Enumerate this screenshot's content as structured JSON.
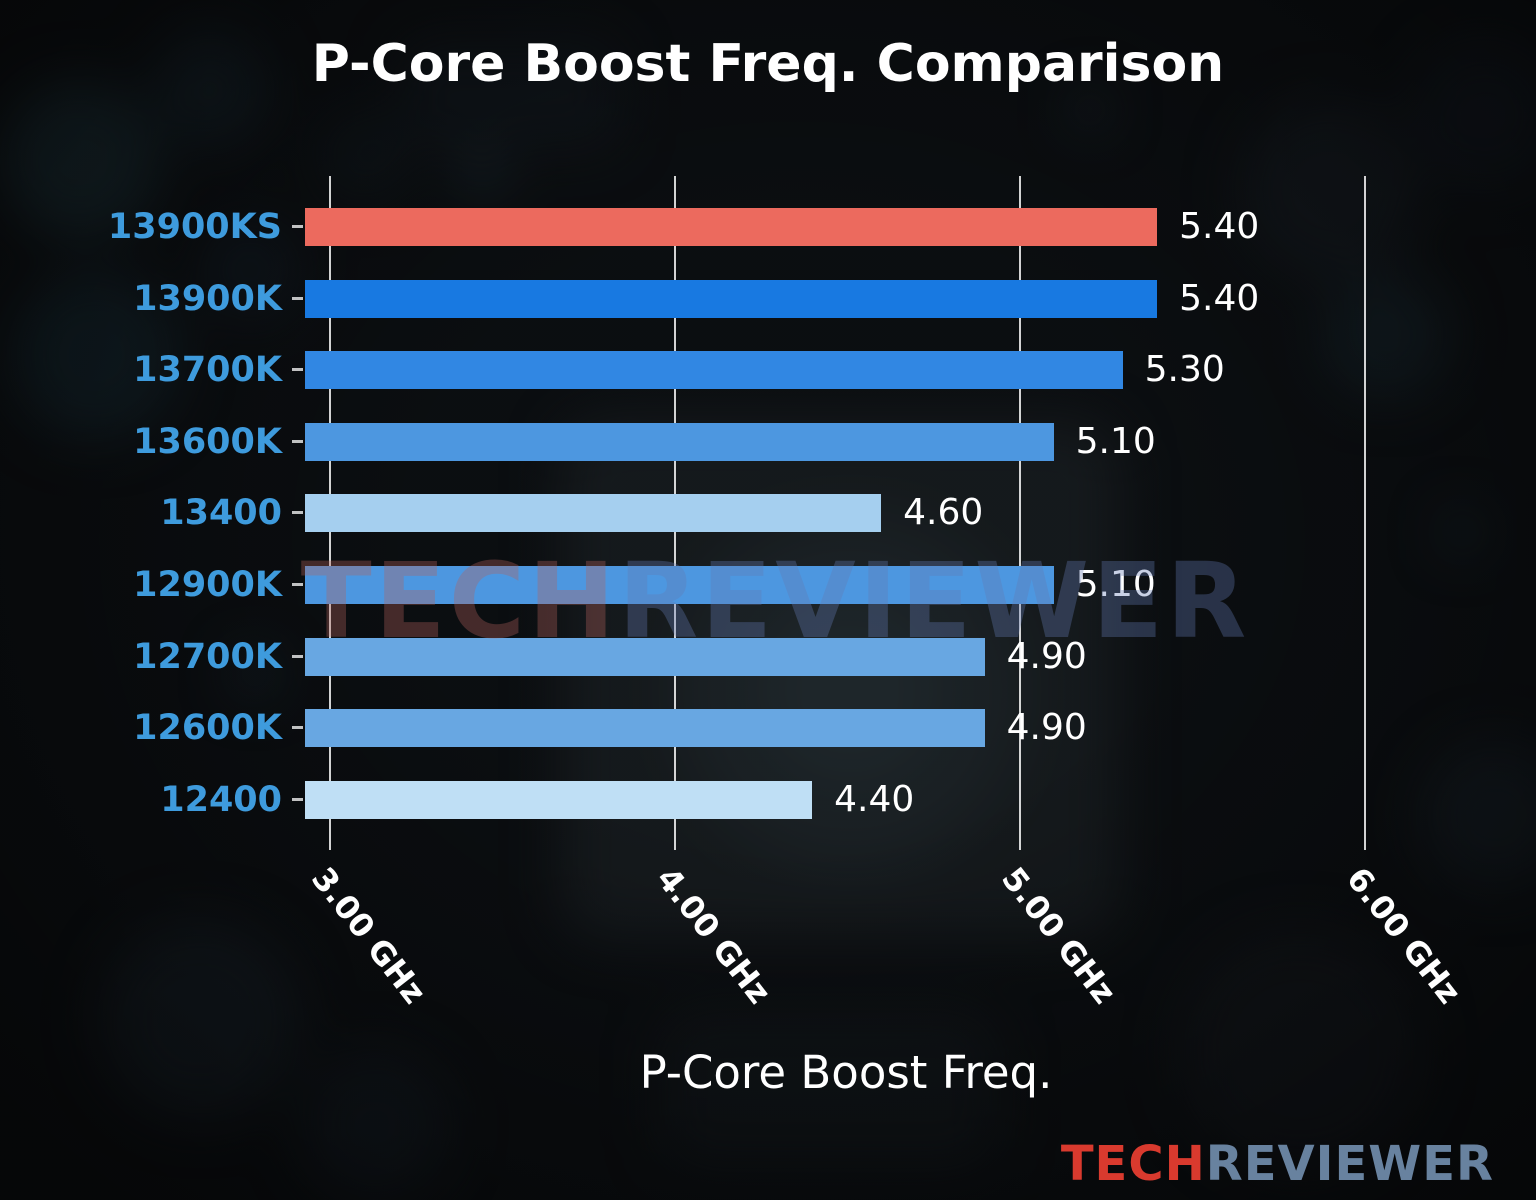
{
  "title": "P-Core Boost Freq. Comparison",
  "xlabel": "P-Core Boost Freq.",
  "watermark": {
    "tech": "TECH",
    "reviewer": "REVIEWER"
  },
  "brand": {
    "tech": "TECH",
    "reviewer": "REVIEWER"
  },
  "chart_data": {
    "type": "bar",
    "orientation": "horizontal",
    "title": "P-Core Boost Freq. Comparison",
    "xlabel": "P-Core Boost Freq.",
    "ylabel": "",
    "xlim": [
      2.93,
      6.33
    ],
    "grid": true,
    "legend": false,
    "x_ticks": [
      {
        "value": 3,
        "label": "3.00 GHz"
      },
      {
        "value": 4,
        "label": "4.00 GHz"
      },
      {
        "value": 5,
        "label": "5.00 GHz"
      },
      {
        "value": 6,
        "label": "6.00 GHz"
      }
    ],
    "categories": [
      "13900KS",
      "13900K",
      "13700K",
      "13600K",
      "13400",
      "12900K",
      "12700K",
      "12600K",
      "12400"
    ],
    "values": [
      5.4,
      5.4,
      5.3,
      5.1,
      4.6,
      5.1,
      4.9,
      4.9,
      4.4
    ],
    "value_labels": [
      "5.40",
      "5.40",
      "5.30",
      "5.10",
      "4.60",
      "5.10",
      "4.90",
      "4.90",
      "4.40"
    ],
    "bar_colors": [
      "#ec6a5e",
      "#1879e1",
      "#3187e3",
      "#4d97e0",
      "#a5cfef",
      "#4d97e0",
      "#68a7e2",
      "#68a7e2",
      "#bfdff5"
    ],
    "highlighted_category": "13900KS"
  },
  "colors": {
    "category_label": "#3e9bdd",
    "axis_text": "#ffffff",
    "gridline": "rgba(255,255,255,0.82)",
    "highlight_bar": "#ec6a5e",
    "watermark_tech": "#b4625d",
    "watermark_reviewer": "#647bb4",
    "brand_tech": "#d93a2e",
    "brand_reviewer": "#68829f"
  }
}
